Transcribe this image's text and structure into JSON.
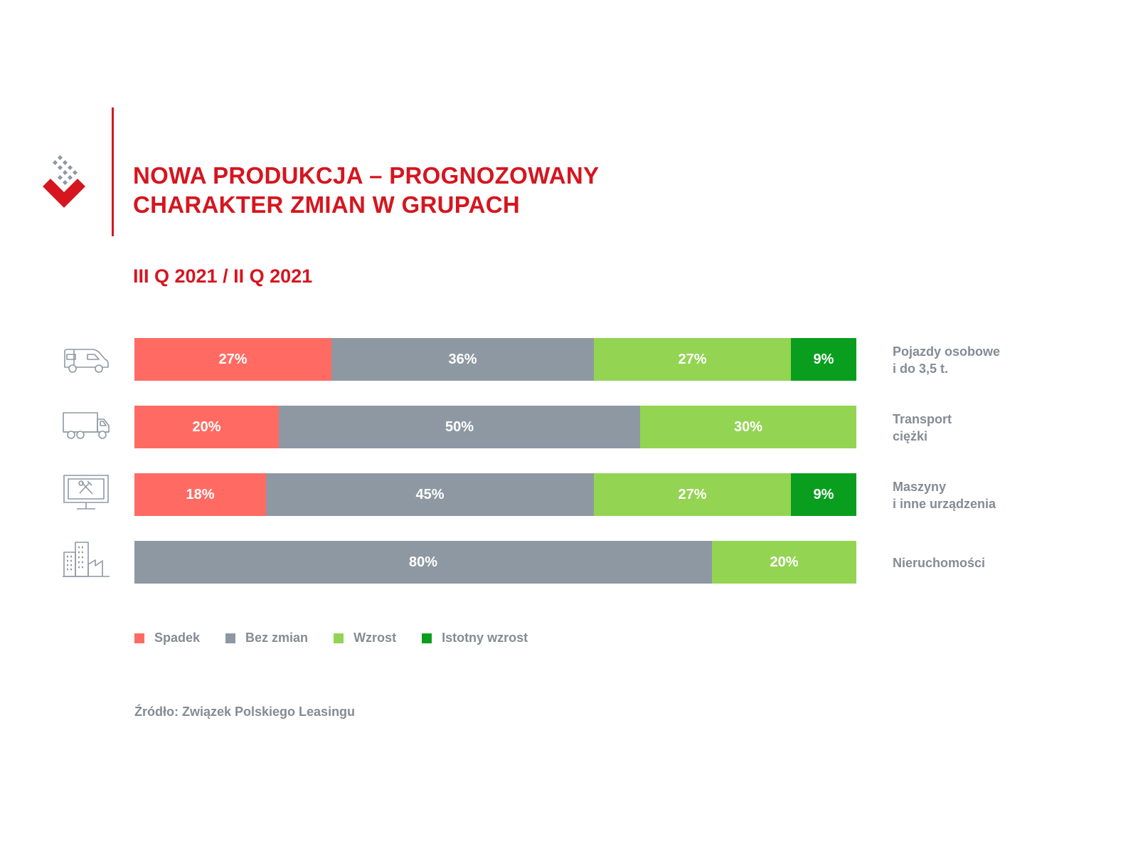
{
  "header": {
    "title_line1": "NOWA PRODUKCJA – PROGNOZOWANY",
    "title_line2": "CHARAKTER ZMIAN W GRUPACH",
    "period": "III Q 2021 / II Q 2021"
  },
  "chart_data": {
    "type": "bar",
    "orientation": "horizontal",
    "stacked": true,
    "title": "NOWA PRODUKCJA – PROGNOZOWANY CHARAKTER ZMIAN W GRUPACH",
    "subtitle": "III Q 2021 / II Q 2021",
    "unit": "%",
    "categories": [
      {
        "line1": "Pojazdy osobowe",
        "line2": "i do 3,5 t.",
        "icon": "van-icon"
      },
      {
        "line1": "Transport",
        "line2": "ciężki",
        "icon": "truck-icon"
      },
      {
        "line1": "Maszyny",
        "line2": "i inne urządzenia",
        "icon": "machinery-icon"
      },
      {
        "line1": "Nieruchomości",
        "line2": "",
        "icon": "building-icon"
      }
    ],
    "series": [
      {
        "name": "Spadek",
        "color": "#ff6b63",
        "values": [
          27,
          20,
          18,
          0
        ]
      },
      {
        "name": "Bez zmian",
        "color": "#8e98a3",
        "values": [
          36,
          50,
          45,
          80
        ]
      },
      {
        "name": "Wzrost",
        "color": "#93d452",
        "values": [
          27,
          30,
          27,
          20
        ]
      },
      {
        "name": "Istotny wzrost",
        "color": "#0a9e1f",
        "values": [
          9,
          0,
          9,
          0
        ]
      }
    ],
    "legend_position": "bottom-left",
    "grid": false
  },
  "source": "Źródło: Związek Polskiego Leasingu",
  "colors": {
    "accent": "#d5161f",
    "text_gray": "#858b94"
  }
}
